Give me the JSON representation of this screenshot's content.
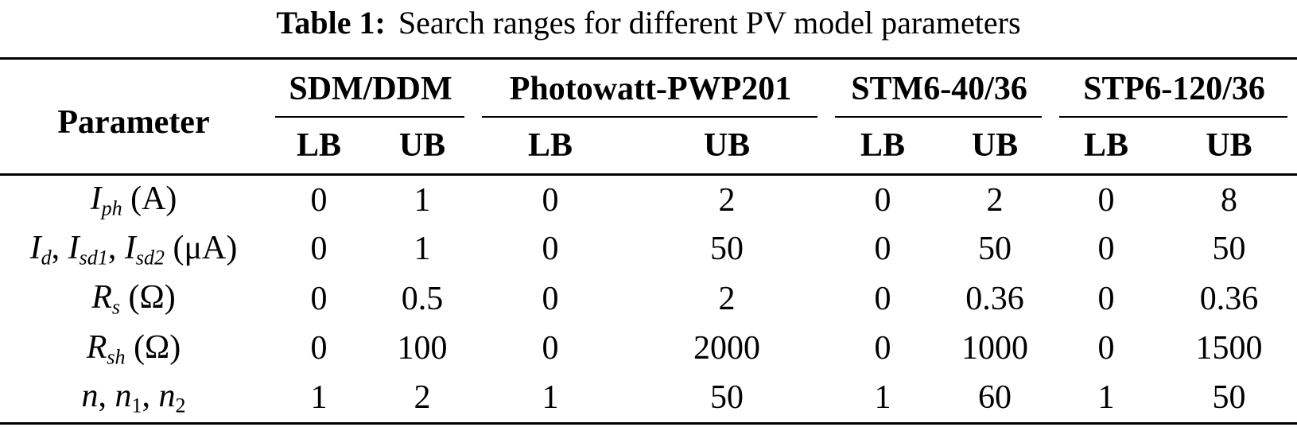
{
  "title": {
    "label": "Table 1:",
    "text": "Search ranges for different PV model parameters"
  },
  "table": {
    "param_header": "Parameter",
    "groups": [
      {
        "name": "SDM/DDM"
      },
      {
        "name": "Photowatt-PWP201"
      },
      {
        "name": "STM6-40/36"
      },
      {
        "name": "STP6-120/36"
      }
    ],
    "bound_headers": [
      "LB",
      "UB",
      "LB",
      "UB",
      "LB",
      "UB",
      "LB",
      "UB"
    ],
    "rows": [
      {
        "param_plain": "Iph (A)",
        "label_segments": [
          {
            "text": "I",
            "style": "italic"
          },
          {
            "text": "ph",
            "style": "italic-sub"
          },
          {
            "text": " (A)",
            "style": "normal"
          }
        ],
        "values": [
          "0",
          "1",
          "0",
          "2",
          "0",
          "2",
          "0",
          "8"
        ]
      },
      {
        "param_plain": "Id, Isd1, Isd2 (μA)",
        "label_segments": [
          {
            "text": "I",
            "style": "italic"
          },
          {
            "text": "d",
            "style": "italic-sub"
          },
          {
            "text": ", ",
            "style": "normal"
          },
          {
            "text": "I",
            "style": "italic"
          },
          {
            "text": "sd1",
            "style": "italic-sub"
          },
          {
            "text": ", ",
            "style": "normal"
          },
          {
            "text": "I",
            "style": "italic"
          },
          {
            "text": "sd2",
            "style": "italic-sub"
          },
          {
            "text": " (μA)",
            "style": "normal"
          }
        ],
        "values": [
          "0",
          "1",
          "0",
          "50",
          "0",
          "50",
          "0",
          "50"
        ]
      },
      {
        "param_plain": "Rs (Ω)",
        "label_segments": [
          {
            "text": "R",
            "style": "italic"
          },
          {
            "text": "s",
            "style": "italic-sub"
          },
          {
            "text": " (Ω)",
            "style": "normal"
          }
        ],
        "values": [
          "0",
          "0.5",
          "0",
          "2",
          "0",
          "0.36",
          "0",
          "0.36"
        ]
      },
      {
        "param_plain": "Rsh (Ω)",
        "label_segments": [
          {
            "text": "R",
            "style": "italic"
          },
          {
            "text": "sh",
            "style": "italic-sub"
          },
          {
            "text": " (Ω)",
            "style": "normal"
          }
        ],
        "values": [
          "0",
          "100",
          "0",
          "2000",
          "0",
          "1000",
          "0",
          "1500"
        ]
      },
      {
        "param_plain": "n, n1, n2",
        "label_segments": [
          {
            "text": "n",
            "style": "italic"
          },
          {
            "text": ", ",
            "style": "normal"
          },
          {
            "text": "n",
            "style": "italic"
          },
          {
            "text": "1",
            "style": "sub"
          },
          {
            "text": ", ",
            "style": "normal"
          },
          {
            "text": "n",
            "style": "italic"
          },
          {
            "text": "2",
            "style": "sub"
          }
        ],
        "values": [
          "1",
          "2",
          "1",
          "50",
          "1",
          "60",
          "1",
          "50"
        ]
      }
    ]
  },
  "colors": {
    "text": "#000000",
    "background": "#ffffff",
    "rule": "#000000"
  }
}
